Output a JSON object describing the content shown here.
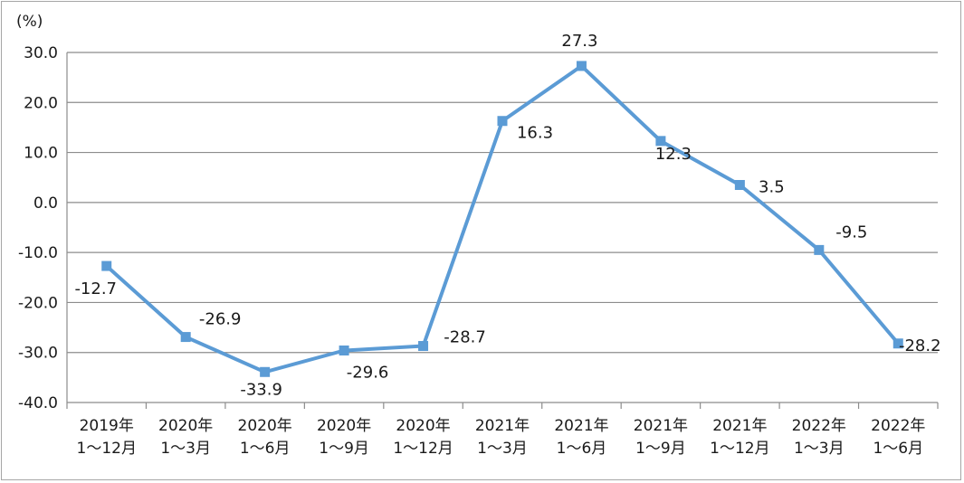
{
  "chart_data": {
    "type": "line",
    "unit_label": "(%)",
    "categories": [
      {
        "year": "2019年",
        "period": "1～12月"
      },
      {
        "year": "2020年",
        "period": "1～3月"
      },
      {
        "year": "2020年",
        "period": "1～6月"
      },
      {
        "year": "2020年",
        "period": "1～9月"
      },
      {
        "year": "2020年",
        "period": "1～12月"
      },
      {
        "year": "2021年",
        "period": "1～3月"
      },
      {
        "year": "2021年",
        "period": "1～6月"
      },
      {
        "year": "2021年",
        "period": "1～9月"
      },
      {
        "year": "2021年",
        "period": "1～12月"
      },
      {
        "year": "2022年",
        "period": "1～3月"
      },
      {
        "year": "2022年",
        "period": "1～6月"
      }
    ],
    "series": [
      {
        "values": [
          -12.7,
          -26.9,
          -33.9,
          -29.6,
          -28.7,
          16.3,
          27.3,
          12.3,
          3.5,
          -9.5,
          -28.2
        ],
        "labels": [
          "-12.7",
          "-26.9",
          "-33.9",
          "-29.6",
          "-28.7",
          "16.3",
          "27.3",
          "12.3",
          "3.5",
          "-9.5",
          "-28.2"
        ],
        "color": "#5b9bd5"
      }
    ],
    "ylim": [
      -40,
      30
    ],
    "yticks": [
      "30.0",
      "20.0",
      "10.0",
      "0.0",
      "-10.0",
      "-20.0",
      "-30.0",
      "-40.0"
    ],
    "ytick_values": [
      30,
      20,
      10,
      0,
      -10,
      -20,
      -30,
      -40
    ],
    "grid": true,
    "legend": "none",
    "colors": {
      "line": "#5b9bd5",
      "grid": "#8c8c8c",
      "axis": "#8c8c8c"
    }
  }
}
